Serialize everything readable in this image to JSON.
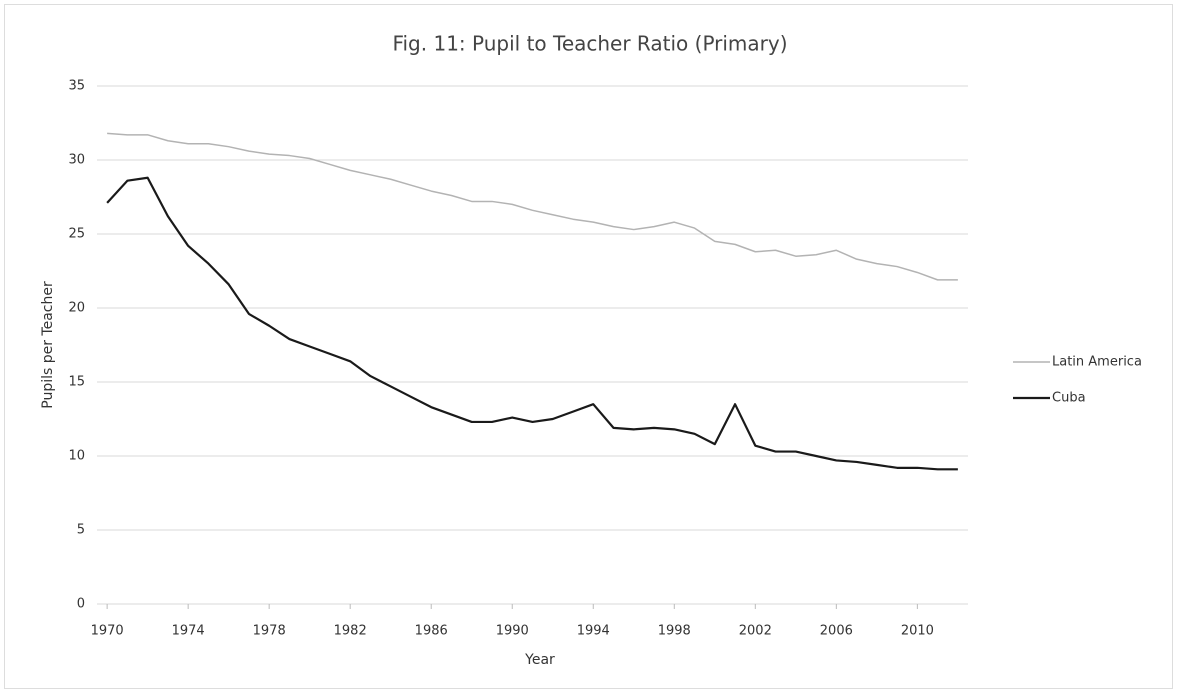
{
  "chart_data": {
    "type": "line",
    "title": "Fig. 11: Pupil to Teacher Ratio (Primary)",
    "x_label": "Year",
    "y_label": "Pupils per Teacher",
    "x": [
      1970,
      1971,
      1972,
      1973,
      1974,
      1975,
      1976,
      1977,
      1978,
      1979,
      1980,
      1981,
      1982,
      1983,
      1984,
      1985,
      1986,
      1987,
      1988,
      1989,
      1990,
      1991,
      1992,
      1993,
      1994,
      1995,
      1996,
      1997,
      1998,
      1999,
      2000,
      2001,
      2002,
      2003,
      2004,
      2005,
      2006,
      2007,
      2008,
      2009,
      2010,
      2011,
      2012
    ],
    "xlim": [
      1969.5,
      2012.5
    ],
    "xticks": [
      1970,
      1974,
      1978,
      1982,
      1986,
      1990,
      1994,
      1998,
      2002,
      2006,
      2010
    ],
    "ylim": [
      0,
      35
    ],
    "yticks": [
      0,
      5,
      10,
      15,
      20,
      25,
      30,
      35
    ],
    "grid": true,
    "legend": "right",
    "series": [
      {
        "name": "Latin America",
        "color": "#b3b3b3",
        "values": [
          31.8,
          31.7,
          31.7,
          31.3,
          31.1,
          31.1,
          30.9,
          30.6,
          30.4,
          30.3,
          30.1,
          29.7,
          29.3,
          29.0,
          28.7,
          28.3,
          27.9,
          27.6,
          27.2,
          27.2,
          27.0,
          26.6,
          26.3,
          26.0,
          25.8,
          25.5,
          25.3,
          25.5,
          25.8,
          25.4,
          24.5,
          24.3,
          23.8,
          23.9,
          23.5,
          23.6,
          23.9,
          23.3,
          23.0,
          22.8,
          22.4,
          21.9,
          21.9
        ]
      },
      {
        "name": "Cuba",
        "color": "#1a1a1a",
        "values": [
          27.1,
          28.6,
          28.8,
          26.2,
          24.2,
          23.0,
          21.6,
          19.6,
          18.8,
          17.9,
          17.4,
          16.9,
          16.4,
          15.4,
          14.7,
          14.0,
          13.3,
          12.8,
          12.3,
          12.3,
          12.6,
          12.3,
          12.5,
          13.0,
          13.5,
          11.9,
          11.8,
          11.9,
          11.8,
          11.5,
          10.8,
          13.5,
          10.7,
          10.3,
          10.3,
          10.0,
          9.7,
          9.6,
          9.4,
          9.2,
          9.2,
          9.1,
          9.1
        ]
      }
    ]
  }
}
